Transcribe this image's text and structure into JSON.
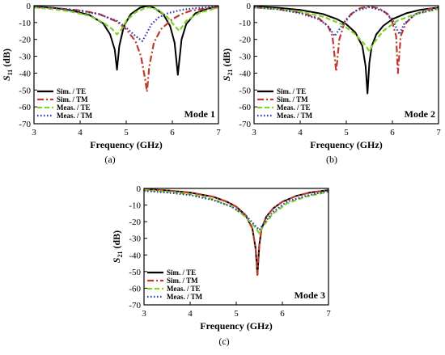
{
  "colors": {
    "te_sim": "#000000",
    "tm_sim": "#c0392b",
    "te_meas": "#7ed321",
    "tm_meas": "#2b2fa8"
  },
  "legend_entries": [
    "Sim. / TE",
    "Sim. / TM",
    "Meas. / TE",
    "Meas. / TM"
  ],
  "chart_data": [
    {
      "type": "line",
      "panel_label": "(a)",
      "mode_label": "Mode 1",
      "xlabel": "Frequency (GHz)",
      "ylabel_main": "S",
      "ylabel_sub": "11",
      "ylabel_suffix": " (dB)",
      "xlim": [
        3,
        7
      ],
      "ylim": [
        -70,
        0
      ],
      "xticks": [
        3,
        4,
        5,
        6,
        7
      ],
      "yticks": [
        0,
        -10,
        -20,
        -30,
        -40,
        -50,
        -60,
        -70
      ],
      "legend_position": "bottom-left",
      "grid": false,
      "series": [
        {
          "name": "Sim. / TE",
          "color_key": "te_sim",
          "style": "solid",
          "x": [
            3.0,
            3.4,
            3.8,
            4.2,
            4.5,
            4.65,
            4.75,
            4.8,
            4.85,
            4.95,
            5.1,
            5.3,
            5.45,
            5.6,
            5.8,
            5.95,
            6.05,
            6.12,
            6.2,
            6.3,
            6.5,
            6.8,
            7.0
          ],
          "y": [
            -0.5,
            -1.2,
            -2.8,
            -5.5,
            -10.5,
            -17,
            -26,
            -38,
            -24,
            -12,
            -5,
            -1.2,
            -0.2,
            -1.2,
            -5,
            -12,
            -22,
            -41,
            -20,
            -11,
            -4.5,
            -1.5,
            -0.6
          ]
        },
        {
          "name": "Sim. / TM",
          "color_key": "tm_sim",
          "style": "dashdot",
          "x": [
            3.0,
            3.5,
            4.0,
            4.4,
            4.8,
            5.0,
            5.2,
            5.32,
            5.4,
            5.45,
            5.5,
            5.6,
            5.75,
            6.0,
            6.2,
            6.4,
            6.7,
            7.0
          ],
          "y": [
            -1,
            -1.5,
            -2.8,
            -4.8,
            -9.5,
            -14,
            -21,
            -30,
            -42,
            -51,
            -36,
            -22,
            -14,
            -8,
            -5,
            -3,
            -1.8,
            -1
          ]
        },
        {
          "name": "Meas. / TE",
          "color_key": "te_meas",
          "style": "dashed",
          "x": [
            3.0,
            3.4,
            3.8,
            4.2,
            4.5,
            4.7,
            4.8,
            4.9,
            5.0,
            5.2,
            5.4,
            5.5,
            5.7,
            5.9,
            6.05,
            6.15,
            6.3,
            6.6,
            7.0
          ],
          "y": [
            -1,
            -2,
            -3.5,
            -6,
            -10,
            -14,
            -17,
            -14,
            -9,
            -4,
            -1.5,
            -1,
            -2.5,
            -7,
            -12,
            -15,
            -9,
            -4,
            -1.2
          ]
        },
        {
          "name": "Meas. / TM",
          "color_key": "tm_meas",
          "style": "dotted",
          "x": [
            3.0,
            3.5,
            4.0,
            4.4,
            4.8,
            5.0,
            5.2,
            5.35,
            5.45,
            5.55,
            5.7,
            5.9,
            6.2,
            6.5,
            7.0
          ],
          "y": [
            -0.5,
            -1.5,
            -3,
            -5,
            -9,
            -13,
            -18,
            -21,
            -16,
            -11,
            -7,
            -4.5,
            -2.5,
            -1.5,
            -0.5
          ]
        }
      ]
    },
    {
      "type": "line",
      "panel_label": "(b)",
      "mode_label": "Mode 2",
      "xlabel": "Frequency (GHz)",
      "ylabel_main": "S",
      "ylabel_sub": "21",
      "ylabel_suffix": " (dB)",
      "xlim": [
        3,
        7
      ],
      "ylim": [
        -70,
        0
      ],
      "xticks": [
        3,
        4,
        5,
        6,
        7
      ],
      "yticks": [
        0,
        -10,
        -20,
        -30,
        -40,
        -50,
        -60,
        -70
      ],
      "legend_position": "bottom-left",
      "grid": false,
      "series": [
        {
          "name": "Sim. / TE",
          "color_key": "te_sim",
          "style": "solid",
          "x": [
            3.0,
            3.5,
            4.0,
            4.5,
            4.8,
            5.0,
            5.2,
            5.35,
            5.42,
            5.46,
            5.5,
            5.55,
            5.65,
            5.8,
            6.0,
            6.3,
            6.6,
            7.0
          ],
          "y": [
            -0.5,
            -1.2,
            -2.5,
            -5,
            -8,
            -11,
            -16,
            -24,
            -36,
            -52,
            -34,
            -24,
            -17,
            -12,
            -8,
            -4.5,
            -2.5,
            -1
          ]
        },
        {
          "name": "Sim. / TM",
          "color_key": "tm_sim",
          "style": "dashdot",
          "x": [
            3.0,
            3.5,
            4.0,
            4.4,
            4.6,
            4.7,
            4.78,
            4.85,
            4.95,
            5.1,
            5.3,
            5.5,
            5.7,
            5.9,
            6.0,
            6.08,
            6.12,
            6.18,
            6.3,
            6.5,
            6.8,
            7.0
          ],
          "y": [
            -1,
            -2,
            -4,
            -7.5,
            -12,
            -18,
            -39,
            -20,
            -11,
            -5,
            -1.5,
            -0.5,
            -1.5,
            -5,
            -10,
            -18,
            -40,
            -18,
            -10,
            -5,
            -2,
            -1
          ]
        },
        {
          "name": "Meas. / TE",
          "color_key": "te_meas",
          "style": "dashed",
          "x": [
            3.0,
            3.5,
            4.0,
            4.5,
            4.9,
            5.2,
            5.4,
            5.5,
            5.6,
            5.8,
            6.1,
            6.5,
            7.0
          ],
          "y": [
            -1,
            -2,
            -3.5,
            -6.5,
            -11,
            -17,
            -23,
            -27,
            -22,
            -15,
            -9,
            -5,
            -2
          ]
        },
        {
          "name": "Meas. / TM",
          "color_key": "tm_meas",
          "style": "dotted",
          "x": [
            3.0,
            3.5,
            4.0,
            4.4,
            4.6,
            4.75,
            4.85,
            5.0,
            5.2,
            5.5,
            5.8,
            6.0,
            6.1,
            6.15,
            6.25,
            6.5,
            7.0
          ],
          "y": [
            -1,
            -2,
            -4.5,
            -8,
            -12,
            -18,
            -14,
            -8,
            -3,
            -1,
            -3,
            -8,
            -14,
            -17,
            -11,
            -5,
            -1.5
          ]
        }
      ]
    },
    {
      "type": "line",
      "panel_label": "(c)",
      "mode_label": "Mode 3",
      "xlabel": "Frequency (GHz)",
      "ylabel_main": "S",
      "ylabel_sub": "21",
      "ylabel_suffix": " (dB)",
      "xlim": [
        3,
        7
      ],
      "ylim": [
        -70,
        0
      ],
      "xticks": [
        3,
        4,
        5,
        6,
        7
      ],
      "yticks": [
        0,
        -10,
        -20,
        -30,
        -40,
        -50,
        -60,
        -70
      ],
      "legend_position": "bottom-left",
      "grid": false,
      "series": [
        {
          "name": "Sim. / TE",
          "color_key": "te_sim",
          "style": "solid",
          "x": [
            3.0,
            3.5,
            4.0,
            4.5,
            4.8,
            5.0,
            5.2,
            5.35,
            5.42,
            5.46,
            5.5,
            5.55,
            5.65,
            5.8,
            6.0,
            6.3,
            6.6,
            7.0
          ],
          "y": [
            -0.5,
            -1.2,
            -2.5,
            -5,
            -8,
            -11,
            -16,
            -24,
            -36,
            -52,
            -34,
            -24,
            -17,
            -12,
            -8,
            -4.5,
            -2.5,
            -1
          ]
        },
        {
          "name": "Sim. / TM",
          "color_key": "tm_sim",
          "style": "dashdot",
          "x": [
            3.0,
            3.5,
            4.0,
            4.5,
            4.8,
            5.0,
            5.2,
            5.35,
            5.42,
            5.46,
            5.5,
            5.55,
            5.65,
            5.8,
            6.0,
            6.3,
            6.6,
            7.0
          ],
          "y": [
            -0.5,
            -1.2,
            -2.5,
            -5,
            -8,
            -11,
            -16,
            -24,
            -36,
            -52,
            -34,
            -24,
            -17,
            -12,
            -8,
            -4.5,
            -2.5,
            -1
          ]
        },
        {
          "name": "Meas. / TE",
          "color_key": "te_meas",
          "style": "dashed",
          "x": [
            3.0,
            3.5,
            4.0,
            4.5,
            4.9,
            5.2,
            5.4,
            5.5,
            5.6,
            5.8,
            6.1,
            6.5,
            7.0
          ],
          "y": [
            -1,
            -2,
            -3.5,
            -6.5,
            -11,
            -17,
            -23,
            -27,
            -22,
            -15,
            -9,
            -5,
            -2
          ]
        },
        {
          "name": "Meas. / TM",
          "color_key": "tm_meas",
          "style": "dotted",
          "x": [
            3.0,
            3.5,
            4.0,
            4.5,
            4.9,
            5.2,
            5.4,
            5.5,
            5.6,
            5.8,
            6.1,
            6.5,
            7.0
          ],
          "y": [
            -1.5,
            -2.5,
            -4,
            -7,
            -11,
            -16,
            -22,
            -25,
            -21,
            -14,
            -8,
            -4.5,
            -1.5
          ]
        }
      ]
    }
  ]
}
